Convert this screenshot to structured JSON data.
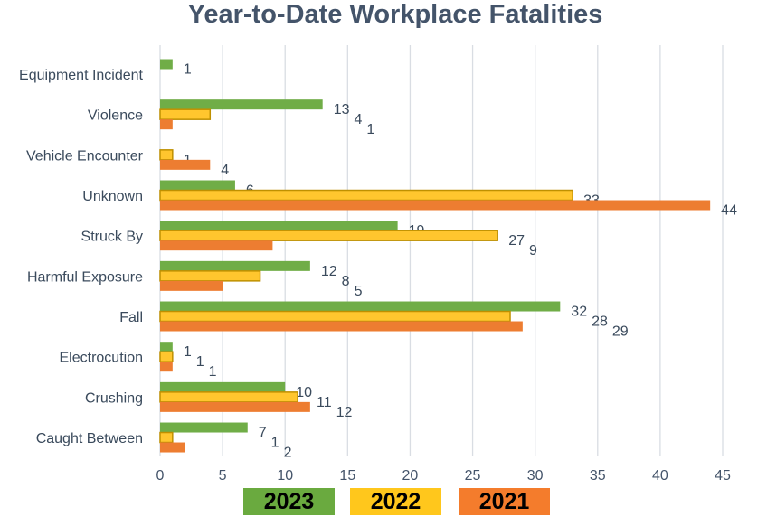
{
  "chart_data": {
    "type": "bar",
    "orientation": "horizontal",
    "title": "Year-to-Date Workplace Fatalities",
    "categories": [
      "Equipment Incident",
      "Violence",
      "Vehicle Encounter",
      "Unknown",
      "Struck By",
      "Harmful Exposure",
      "Fall",
      "Electrocution",
      "Crushing",
      "Caught Between"
    ],
    "series": [
      {
        "name": "2023",
        "color": "#70ad47",
        "values": [
          1,
          13,
          null,
          6,
          19,
          12,
          32,
          1,
          10,
          7
        ]
      },
      {
        "name": "2022",
        "color": "#ffc62e",
        "border": "#bf9000",
        "values": [
          null,
          4,
          1,
          33,
          27,
          8,
          28,
          1,
          11,
          1
        ]
      },
      {
        "name": "2021",
        "color": "#ed7d31",
        "values": [
          null,
          1,
          4,
          44,
          9,
          5,
          29,
          1,
          12,
          2
        ]
      }
    ],
    "xlim": [
      0,
      45
    ],
    "xticks": [
      0,
      5,
      10,
      15,
      20,
      25,
      30,
      35,
      40,
      45
    ],
    "grid": true,
    "data_labels": true,
    "legend_position": "bottom",
    "legend_colors": [
      "#6aaa3f",
      "#ffc71c",
      "#f47c2c"
    ]
  }
}
